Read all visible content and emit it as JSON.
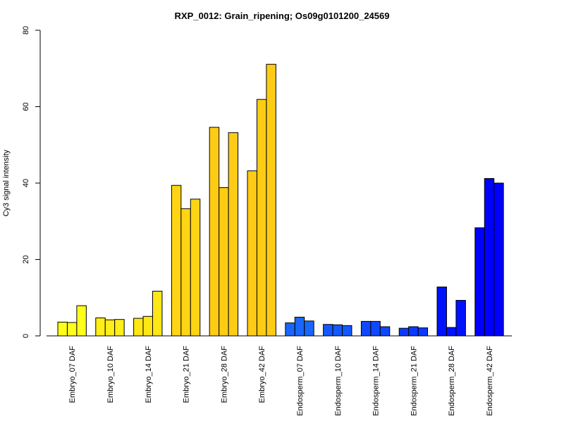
{
  "chart_data": {
    "type": "bar",
    "title": "RXP_0012: Grain_ripening; Os09g0101200_24569",
    "xlabel": "",
    "ylabel": "Cy3 signal intensity",
    "ylim": [
      0,
      80
    ],
    "yticks": [
      0,
      20,
      40,
      60,
      80
    ],
    "grid": false,
    "bars_per_category": 3,
    "categories": [
      "Embryo_07 DAF",
      "Embryo_10 DAF",
      "Embryo_14 DAF",
      "Embryo_21 DAF",
      "Embryo_28 DAF",
      "Embryo_42 DAF",
      "Endosperm_07 DAF",
      "Endosperm_10 DAF",
      "Endosperm_14 DAF",
      "Endosperm_21 DAF",
      "Endosperm_28 DAF",
      "Endosperm_42 DAF"
    ],
    "colors": [
      "#FFFF1A",
      "#FFEE18",
      "#FFE616",
      "#FFD415",
      "#FFCC15",
      "#FFCC15",
      "#1A66FF",
      "#1459FF",
      "#1048FF",
      "#0A3AFF",
      "#0011FF",
      "#0000FF"
    ],
    "values": [
      [
        3.6,
        3.5,
        7.9
      ],
      [
        4.7,
        4.2,
        4.3
      ],
      [
        4.6,
        5.1,
        11.7
      ],
      [
        39.4,
        33.3,
        35.8
      ],
      [
        54.6,
        38.8,
        53.2
      ],
      [
        43.2,
        61.9,
        71.1
      ],
      [
        3.4,
        4.9,
        3.9
      ],
      [
        3.0,
        2.9,
        2.7
      ],
      [
        3.8,
        3.8,
        2.4
      ],
      [
        2.0,
        2.4,
        2.1
      ],
      [
        12.8,
        2.2,
        9.3
      ],
      [
        28.3,
        41.2,
        40.0
      ]
    ]
  }
}
